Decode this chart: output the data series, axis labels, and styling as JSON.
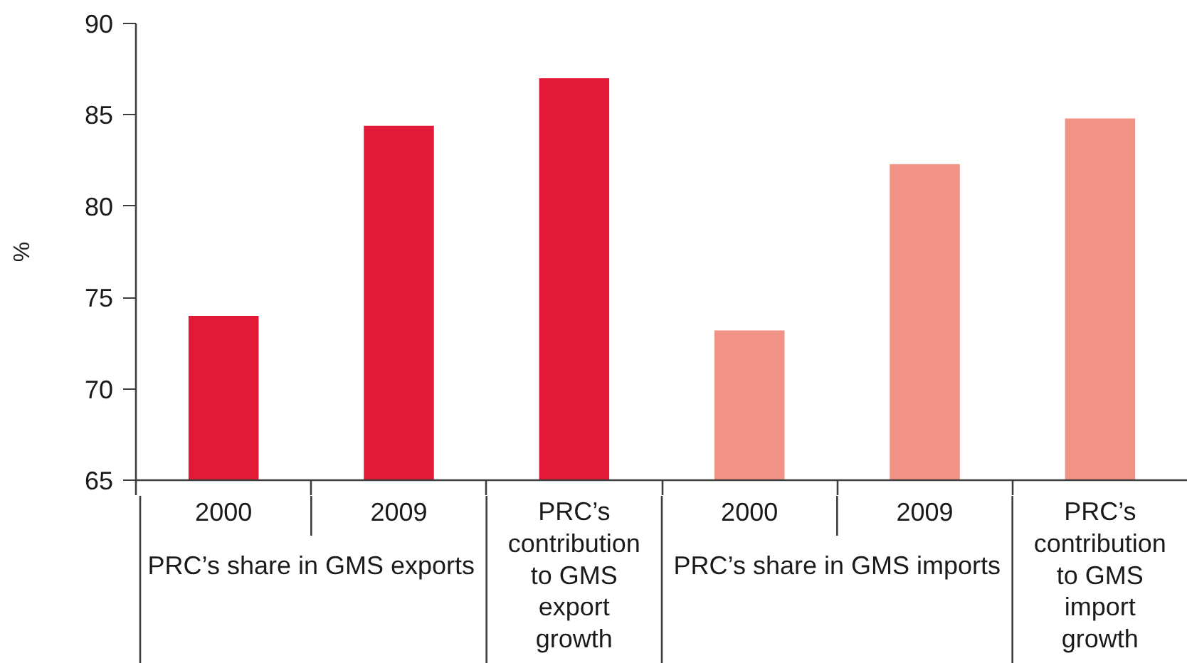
{
  "chart_data": {
    "type": "bar",
    "ylabel": "%",
    "categories": [
      "2000",
      "2009",
      "PRC’s contribution to GMS export growth",
      "2000",
      "2009",
      "PRC’s contribution to GMS import growth"
    ],
    "values": [
      74.0,
      84.4,
      87.0,
      73.2,
      82.3,
      84.8
    ],
    "colors": [
      "#e31a37",
      "#e31a37",
      "#e31a37",
      "#f09386",
      "#f09386",
      "#f09386"
    ],
    "ylim": [
      65,
      90
    ],
    "yticks": [
      65,
      70,
      75,
      80,
      85,
      90
    ],
    "annotations": [
      "PRC’s share in GMS exports",
      "PRC’s share in GMS imports"
    ]
  }
}
